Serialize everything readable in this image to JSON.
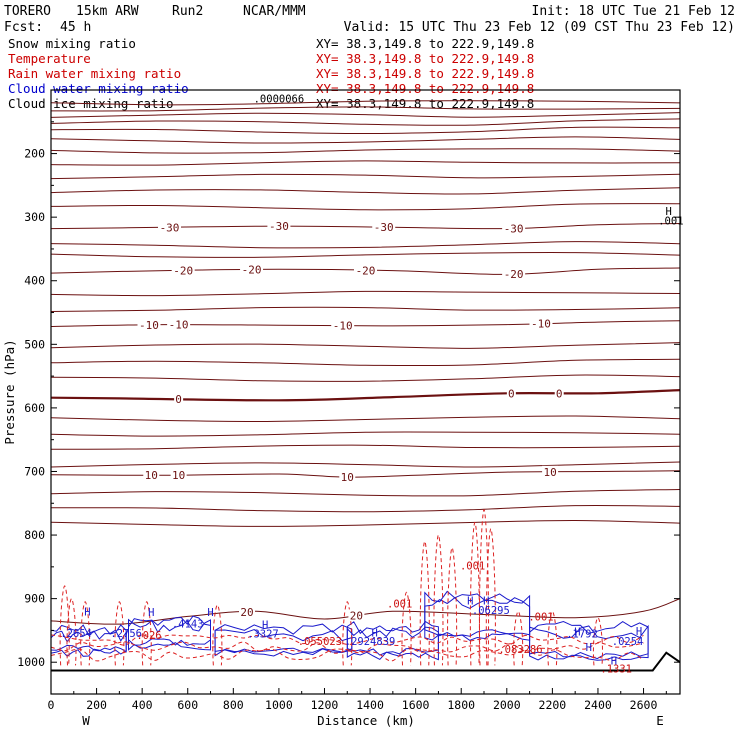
{
  "header": {
    "model": "TORERO",
    "resolution": "15km ARW",
    "run": "Run2",
    "org": "NCAR/MMM",
    "init": "Init: 18 UTC Tue 21 Feb 12",
    "fcst_label": "Fcst:",
    "fcst_value": "45 h",
    "valid": "Valid: 15 UTC Thu 23 Feb 12 (09 CST Thu 23 Feb 12)"
  },
  "legend": [
    {
      "name": "Snow mixing ratio",
      "color": "#000000",
      "xy": "XY=  38.3,149.8 to 222.9,149.8",
      "xy_color": "#000000"
    },
    {
      "name": "Temperature",
      "color": "#cc0000",
      "xy": "XY=  38.3,149.8 to 222.9,149.8",
      "xy_color": "#cc0000"
    },
    {
      "name": "Rain water mixing ratio",
      "color": "#cc0000",
      "xy": "XY=  38.3,149.8 to 222.9,149.8",
      "xy_color": "#cc0000"
    },
    {
      "name": "Cloud water mixing ratio",
      "color": "#0000cc",
      "xy": "XY=  38.3,149.8 to 222.9,149.8",
      "xy_color": "#cc0000"
    },
    {
      "name": "Cloud ice mixing ratio",
      "color": "#000000",
      "xy": "XY=  38.3,149.8 to 222.9,149.8",
      "xy_color": "#000000"
    }
  ],
  "chart_data": {
    "type": "contour cross-section",
    "xlabel": "Distance (km)",
    "ylabel": "Pressure (hPa)",
    "xlim": [
      0,
      2760
    ],
    "ylim": [
      1050,
      100
    ],
    "x_ticks": [
      0,
      200,
      400,
      600,
      800,
      1000,
      1200,
      1400,
      1600,
      1800,
      2000,
      2200,
      2400,
      2600
    ],
    "y_ticks": [
      200,
      300,
      400,
      500,
      600,
      700,
      800,
      900,
      1000
    ],
    "west_label": "W",
    "east_label": "E",
    "terrain": [
      [
        0,
        1013
      ],
      [
        2640,
        1013
      ],
      [
        2700,
        985
      ],
      [
        2760,
        1000
      ]
    ],
    "temperature_isotherms": [
      {
        "level": -30,
        "labels": [
          {
            "x": 520,
            "label": "-30"
          },
          {
            "x": 1000,
            "label": "-30"
          },
          {
            "x": 1460,
            "label": "-30"
          },
          {
            "x": 2030,
            "label": "-30"
          }
        ],
        "points": [
          [
            0,
            318
          ],
          [
            500,
            316
          ],
          [
            1000,
            314
          ],
          [
            1500,
            316
          ],
          [
            2000,
            318
          ],
          [
            2400,
            312
          ],
          [
            2760,
            310
          ]
        ]
      },
      {
        "level": -20,
        "labels": [
          {
            "x": 580,
            "label": "-20"
          },
          {
            "x": 880,
            "label": "-20"
          },
          {
            "x": 1380,
            "label": "-20"
          },
          {
            "x": 2030,
            "label": "-20"
          }
        ],
        "points": [
          [
            0,
            388
          ],
          [
            500,
            384
          ],
          [
            1000,
            382
          ],
          [
            1500,
            384
          ],
          [
            2000,
            390
          ],
          [
            2400,
            382
          ],
          [
            2760,
            380
          ]
        ]
      },
      {
        "level": -10,
        "labels": [
          {
            "x": 430,
            "label": "-10"
          },
          {
            "x": 560,
            "label": "-10"
          },
          {
            "x": 1280,
            "label": "-10"
          },
          {
            "x": 2150,
            "label": "-10"
          }
        ],
        "points": [
          [
            0,
            472
          ],
          [
            500,
            469
          ],
          [
            1000,
            470
          ],
          [
            1500,
            471
          ],
          [
            2000,
            469
          ],
          [
            2400,
            465
          ],
          [
            2760,
            463
          ]
        ]
      },
      {
        "level": 0,
        "labels": [
          {
            "x": 560,
            "label": "0"
          },
          {
            "x": 2020,
            "label": "0"
          },
          {
            "x": 2230,
            "label": "0"
          }
        ],
        "points": [
          [
            0,
            584
          ],
          [
            300,
            585
          ],
          [
            1000,
            588
          ],
          [
            1500,
            583
          ],
          [
            2000,
            577
          ],
          [
            2400,
            577
          ],
          [
            2760,
            572
          ]
        ]
      },
      {
        "level": 10,
        "labels": [
          {
            "x": 440,
            "label": "10"
          },
          {
            "x": 560,
            "label": "10"
          },
          {
            "x": 1300,
            "label": "10"
          },
          {
            "x": 2190,
            "label": "10"
          }
        ],
        "points": [
          [
            0,
            705
          ],
          [
            500,
            706
          ],
          [
            1000,
            704
          ],
          [
            1300,
            709
          ],
          [
            1600,
            706
          ],
          [
            2000,
            701
          ],
          [
            2400,
            700
          ],
          [
            2760,
            699
          ]
        ]
      },
      {
        "level": 20,
        "labels": [
          {
            "x": 860,
            "label": "20"
          },
          {
            "x": 1340,
            "label": "20"
          }
        ],
        "points": [
          [
            0,
            935
          ],
          [
            300,
            940
          ],
          [
            600,
            928
          ],
          [
            900,
            920
          ],
          [
            1200,
            932
          ],
          [
            1500,
            920
          ],
          [
            1900,
            925
          ],
          [
            2300,
            930
          ],
          [
            2600,
            920
          ],
          [
            2760,
            900
          ]
        ]
      }
    ],
    "temperature_gray_levels_hpa": [
      120,
      130,
      140,
      152,
      165,
      180,
      196,
      215,
      236,
      260,
      285,
      345,
      360,
      420,
      445,
      503,
      530,
      555,
      618,
      641,
      662,
      690,
      735,
      760,
      783
    ],
    "cloud_ice_labels": [
      {
        "x": 1000,
        "p": 113,
        "label": ".0000066"
      },
      {
        "x": 2710,
        "p": 290,
        "label": "H"
      },
      {
        "x": 2720,
        "p": 305,
        "label": ".001"
      }
    ],
    "rain_water_labels": [
      {
        "x": 1850,
        "p": 848,
        "label": ".001"
      },
      {
        "x": 1530,
        "p": 908,
        "label": ".001"
      },
      {
        "x": 2150,
        "p": 928,
        "label": ".001"
      },
      {
        "x": 430,
        "p": 957,
        "label": ".026"
      },
      {
        "x": 1180,
        "p": 967,
        "label": ".055023"
      },
      {
        "x": 2060,
        "p": 979,
        "label": ".083286"
      },
      {
        "x": 2480,
        "p": 1010,
        "label": ".1331"
      }
    ],
    "cloud_water_labels": [
      {
        "x": 110,
        "p": 954,
        "label": ".2654"
      },
      {
        "x": 330,
        "p": 954,
        "label": ".2756"
      },
      {
        "x": 600,
        "p": 939,
        "label": ".4143"
      },
      {
        "x": 930,
        "p": 955,
        "label": ".3327"
      },
      {
        "x": 1400,
        "p": 967,
        "label": ".2924839"
      },
      {
        "x": 1930,
        "p": 918,
        "label": ".06295"
      },
      {
        "x": 2330,
        "p": 955,
        "label": ".1792"
      },
      {
        "x": 2530,
        "p": 967,
        "label": ".0254"
      }
    ],
    "h_markers": [
      {
        "x": 160,
        "p": 920
      },
      {
        "x": 440,
        "p": 921
      },
      {
        "x": 700,
        "p": 921
      },
      {
        "x": 940,
        "p": 941
      },
      {
        "x": 1420,
        "p": 953
      },
      {
        "x": 1840,
        "p": 903
      },
      {
        "x": 1910,
        "p": 903
      },
      {
        "x": 2310,
        "p": 952
      },
      {
        "x": 2360,
        "p": 976
      },
      {
        "x": 2470,
        "p": 997
      },
      {
        "x": 2580,
        "p": 951
      }
    ]
  }
}
